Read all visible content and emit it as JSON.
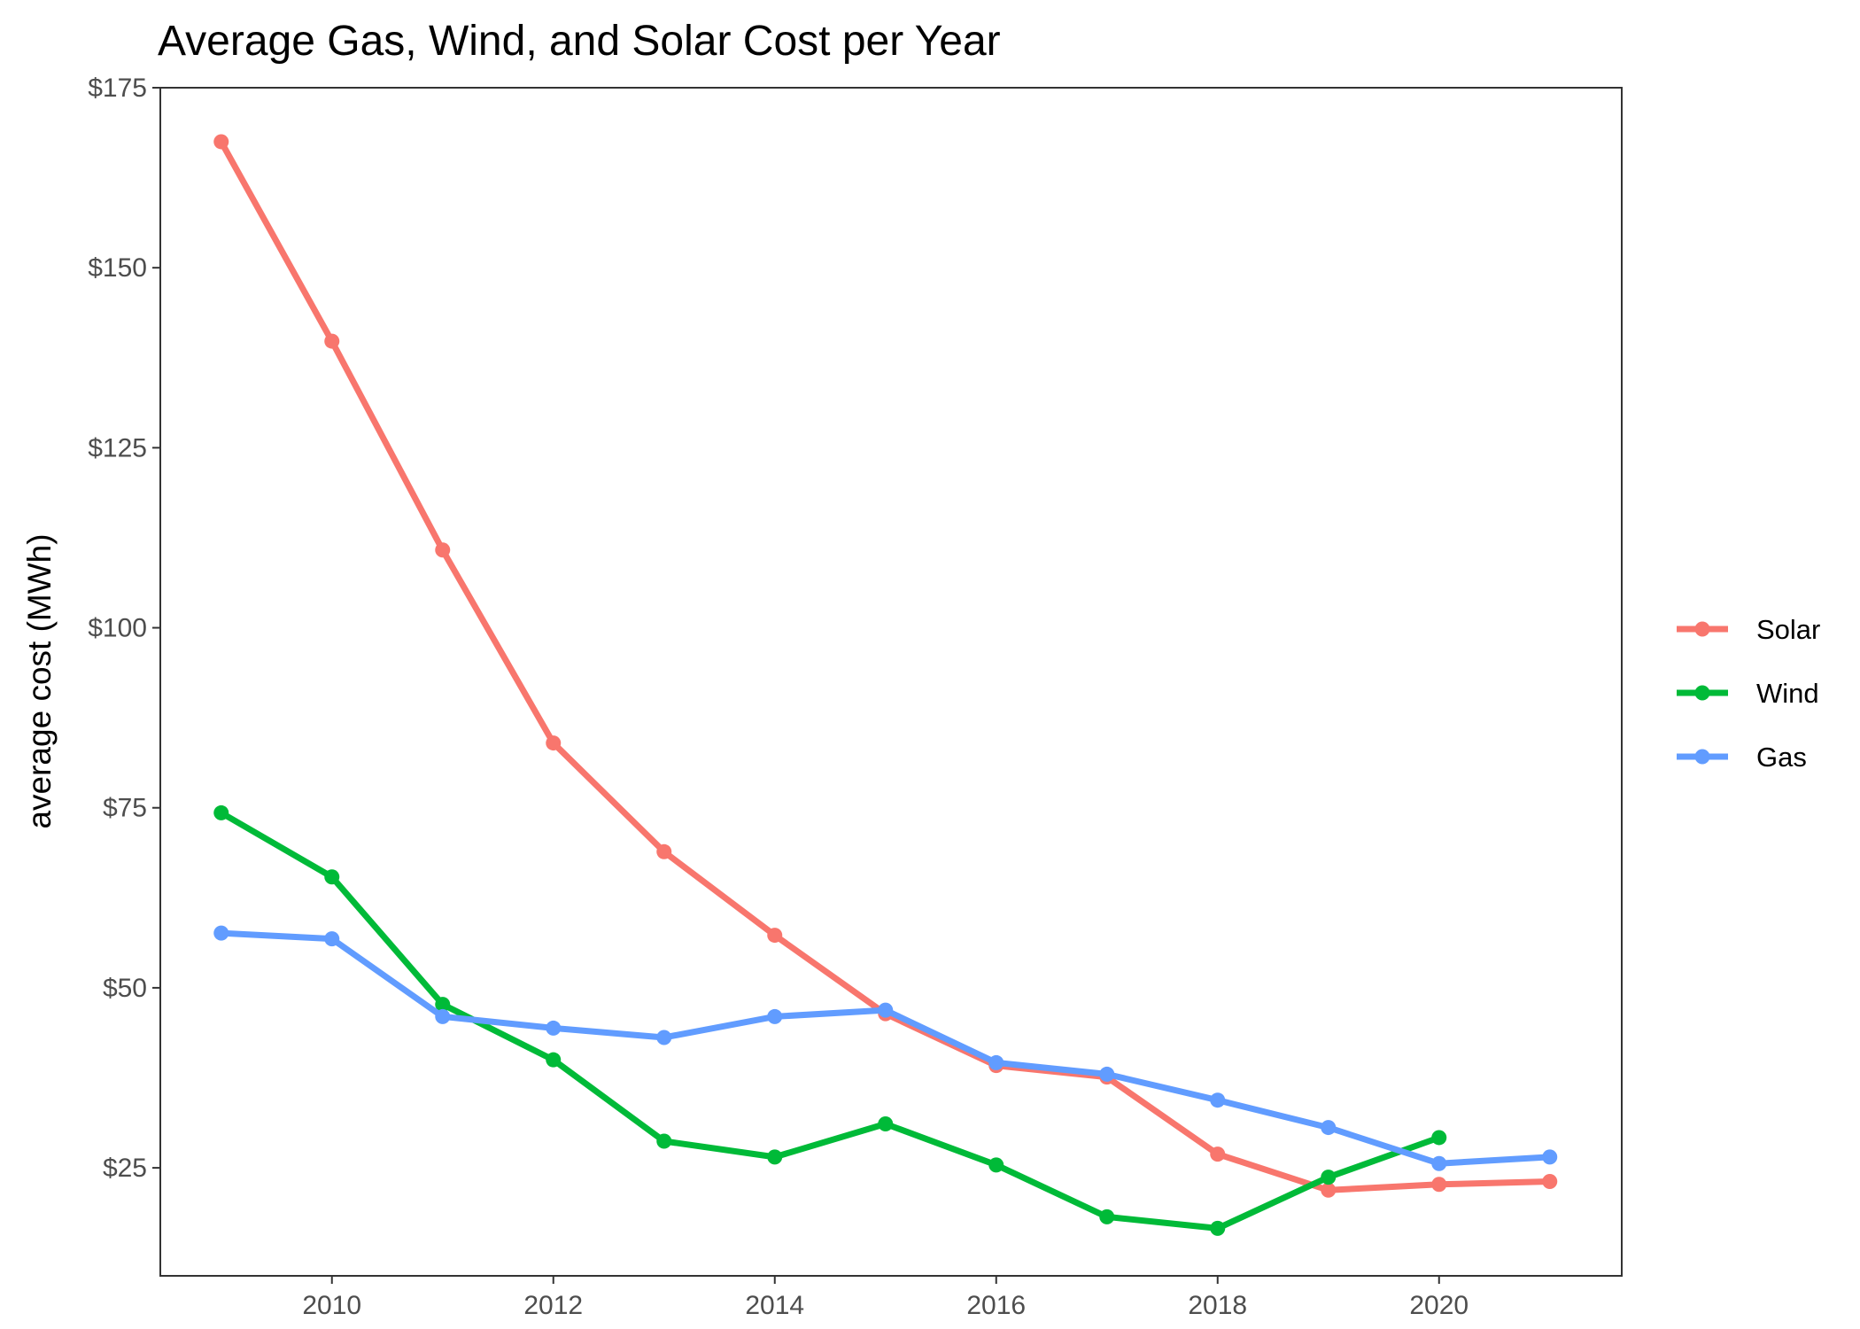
{
  "chart_data": {
    "type": "line",
    "title": "Average Gas, Wind, and Solar Cost per Year",
    "xlabel": "",
    "ylabel": "average cost (MWh)",
    "xlim": [
      2008.45,
      2021.65
    ],
    "ylim": [
      10,
      175
    ],
    "x_ticks": [
      2010,
      2012,
      2014,
      2016,
      2018,
      2020
    ],
    "x_tick_labels": [
      "2010",
      "2012",
      "2014",
      "2016",
      "2018",
      "2020"
    ],
    "y_ticks": [
      25,
      50,
      75,
      100,
      125,
      150,
      175
    ],
    "y_tick_labels": [
      "$25",
      "$50",
      "$75",
      "$100",
      "$125",
      "$150",
      "$175"
    ],
    "grid": false,
    "legend_position": "right",
    "series": [
      {
        "name": "Solar",
        "color": "#F8766D",
        "x": [
          2009,
          2010,
          2011,
          2012,
          2013,
          2014,
          2015,
          2016,
          2017,
          2018,
          2019,
          2020,
          2021
        ],
        "y": [
          167.5,
          139.8,
          110.8,
          84.0,
          68.9,
          57.3,
          46.4,
          39.2,
          37.6,
          26.9,
          21.9,
          22.7,
          23.1
        ]
      },
      {
        "name": "Wind",
        "color": "#00BA38",
        "x": [
          2009,
          2010,
          2011,
          2012,
          2013,
          2014,
          2015,
          2016,
          2017,
          2018,
          2019,
          2020
        ],
        "y": [
          74.3,
          65.4,
          47.7,
          40.0,
          28.7,
          26.5,
          31.1,
          25.4,
          18.2,
          16.6,
          23.7,
          29.2
        ]
      },
      {
        "name": "Gas",
        "color": "#619CFF",
        "x": [
          2009,
          2010,
          2011,
          2012,
          2013,
          2014,
          2015,
          2016,
          2017,
          2018,
          2019,
          2020,
          2021
        ],
        "y": [
          57.6,
          56.8,
          46.0,
          44.4,
          43.1,
          46.0,
          46.9,
          39.6,
          38.0,
          34.4,
          30.6,
          25.6,
          26.5
        ]
      }
    ]
  }
}
